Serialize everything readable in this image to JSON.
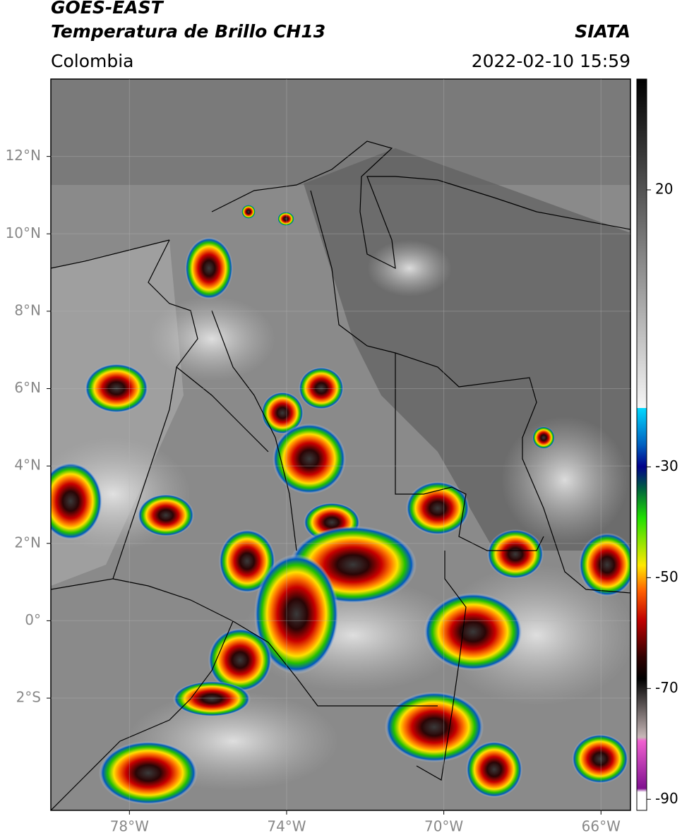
{
  "header": {
    "title": "GOES-EAST",
    "subtitle": "Temperatura de Brillo CH13",
    "source": "SIATA",
    "region": "Colombia",
    "datetime": "2022-02-10 15:59"
  },
  "map": {
    "lonlim": [
      -80,
      -65.25
    ],
    "latlim": [
      -4.9,
      14
    ],
    "lon_ticks": [
      {
        "value": -78,
        "label": "78°W"
      },
      {
        "value": -74,
        "label": "74°W"
      },
      {
        "value": -70,
        "label": "70°W"
      },
      {
        "value": -66,
        "label": "66°W"
      }
    ],
    "lat_ticks": [
      {
        "value": 12,
        "label": "12°N"
      },
      {
        "value": 10,
        "label": "10°N"
      },
      {
        "value": 8,
        "label": "8°N"
      },
      {
        "value": 6,
        "label": "6°N"
      },
      {
        "value": 4,
        "label": "4°N"
      },
      {
        "value": 2,
        "label": "2°N"
      },
      {
        "value": 0,
        "label": "0°"
      },
      {
        "value": -2,
        "label": "2°S"
      }
    ],
    "colorbar": {
      "lim": [
        -92,
        40
      ],
      "ticks": [
        20,
        -30,
        -50,
        -70,
        -90
      ]
    }
  }
}
